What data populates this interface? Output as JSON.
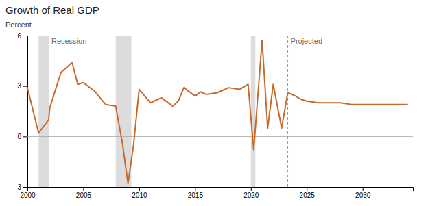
{
  "chart_data": {
    "type": "line",
    "title": "Growth of Real GDP",
    "y_label": "Percent",
    "x": [
      2000,
      2001,
      2001.9,
      2002,
      2003,
      2004,
      2004.5,
      2005,
      2006,
      2007,
      2007.9,
      2008.5,
      2009,
      2009.5,
      2010,
      2011,
      2012,
      2013,
      2013.5,
      2014,
      2015,
      2015.5,
      2016,
      2017,
      2018,
      2019,
      2019.75,
      2020.25,
      2021,
      2021.5,
      2022,
      2022.75,
      2023.3,
      2024,
      2024.5,
      2025,
      2026,
      2027,
      2028,
      2029,
      2030,
      2031,
      2032,
      2033,
      2034
    ],
    "values": [
      2.9,
      0.2,
      1.0,
      1.7,
      3.8,
      4.4,
      3.1,
      3.2,
      2.7,
      1.9,
      1.8,
      -0.4,
      -2.8,
      -0.5,
      2.8,
      2.0,
      2.3,
      1.8,
      2.1,
      2.9,
      2.4,
      2.65,
      2.5,
      2.6,
      2.9,
      2.8,
      3.1,
      -0.8,
      5.7,
      0.5,
      3.1,
      0.5,
      2.6,
      2.4,
      2.2,
      2.1,
      2.0,
      2.0,
      2.0,
      1.9,
      1.9,
      1.9,
      1.9,
      1.9,
      1.9
    ],
    "color": "#c8692a",
    "xlim": [
      2000,
      2034.5
    ],
    "xticks": [
      2000,
      2005,
      2010,
      2015,
      2020,
      2025,
      2030
    ],
    "ylim": [
      -3,
      6
    ],
    "yticks": [
      -3,
      0,
      3,
      6
    ],
    "grid": false,
    "baseline": 0,
    "recession_bands": [
      [
        2001.0,
        2001.9
      ],
      [
        2007.9,
        2009.3
      ],
      [
        2020.0,
        2020.4
      ]
    ],
    "recession_label": "Recession",
    "projected_x": 2023.3,
    "projected_label": "Projected"
  }
}
